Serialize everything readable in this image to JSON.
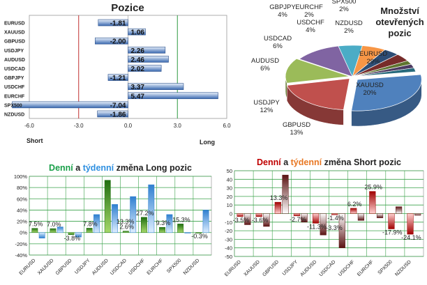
{
  "chart_data": [
    {
      "type": "bar",
      "orientation": "horizontal",
      "title": "Pozice",
      "categories": [
        "EURUSD",
        "XAUUSD",
        "GBPUSD",
        "USDJPY",
        "AUDUSD",
        "USDCAD",
        "GBPJPY",
        "USDCHF",
        "EURCHF",
        "SPX500",
        "NZDUSD"
      ],
      "values": [
        -1.81,
        1.06,
        -2.0,
        2.26,
        2.46,
        2.02,
        -1.21,
        3.37,
        5.47,
        -7.04,
        -1.86
      ],
      "value_labels": [
        "-1.81",
        "1.06",
        "-2.00",
        "2.26",
        "2.46",
        "2.02",
        "-1.21",
        "3.37",
        "5.47",
        "-7.04",
        "-1.86"
      ],
      "xlim": [
        -6.0,
        6.0
      ],
      "xticks": [
        "-6.0",
        "-3.0",
        "0.0",
        "3.0",
        "6.0"
      ],
      "xlabel_left": "Short",
      "xlabel_right": "Long"
    },
    {
      "type": "pie",
      "title": "Množství otevřených pozic",
      "title_lines": [
        "Množství",
        "otevřených",
        "pozic"
      ],
      "slices": [
        {
          "label": "EURUSD",
          "value": 29,
          "text": "29%",
          "color": "#4f81bd"
        },
        {
          "label": "XAUUSD",
          "value": 20,
          "text": "20%",
          "color": "#c0504d"
        },
        {
          "label": "GBPUSD",
          "value": 13,
          "text": "13%",
          "color": "#9bbb59"
        },
        {
          "label": "USDJPY",
          "value": 12,
          "text": "12%",
          "color": "#8064a2"
        },
        {
          "label": "AUDUSD",
          "value": 6,
          "text": "6%",
          "color": "#4bacc6"
        },
        {
          "label": "USDCAD",
          "value": 6,
          "text": "6%",
          "color": "#f79646"
        },
        {
          "label": "GBPJPY",
          "value": 4,
          "text": "4%",
          "color": "#2c4d75"
        },
        {
          "label": "USDCHF",
          "value": 4,
          "text": "4%",
          "color": "#772c2a"
        },
        {
          "label": "EURCHF",
          "value": 2,
          "text": "2%",
          "color": "#5f7530"
        },
        {
          "label": "SPX500",
          "value": 2,
          "text": "2%",
          "color": "#4d3b62"
        },
        {
          "label": "NZDUSD",
          "value": 2,
          "text": "2%",
          "color": "#276a7c"
        }
      ]
    },
    {
      "type": "bar",
      "title_parts": [
        "Denní",
        " a ",
        "týdenní",
        " změna Long pozic"
      ],
      "title_colors": [
        "#1aa04a",
        "#222222",
        "#2e8fe0",
        "#222222"
      ],
      "categories": [
        "EURUSD",
        "XAUUSD",
        "GBPUSD",
        "USDJPY",
        "AUDUSD",
        "USDCAD",
        "USDCHF",
        "EURCHF",
        "SPX500",
        "NZDUSD"
      ],
      "series": [
        {
          "values": [
            7.5,
            7.0,
            -3.8,
            7.8,
            93,
            2.6,
            27.2,
            9.3,
            15.3,
            -0.3
          ],
          "colors": [
            "#1f6e10",
            "#a6d86a"
          ]
        },
        {
          "values": [
            -10,
            10,
            -8,
            32,
            50,
            64,
            85,
            32,
            0,
            40
          ],
          "colors": [
            "#2f7fd0",
            "#ddeeff"
          ]
        }
      ],
      "data_labels": [
        "7.5%",
        "7.0%",
        "-3.8%",
        "7.8%",
        "",
        "2.6%",
        "27.2%",
        "9.3%",
        "15.3%",
        "-0.3%"
      ],
      "data_labels_extra": {
        "13.3%": 5
      },
      "ylim": [
        -40,
        100
      ],
      "yticks": [
        "-40%",
        "-20%",
        "0%",
        "20%",
        "40%",
        "60%",
        "80%",
        "100%"
      ]
    },
    {
      "type": "bar",
      "title_parts": [
        "Denní",
        " a ",
        "týdenní",
        " změna Short pozic"
      ],
      "title_colors": [
        "#c00000",
        "#222222",
        "#e87722",
        "#222222"
      ],
      "categories": [
        "EURUSD",
        "XAUUSD",
        "GBPUSD",
        "USDJPY",
        "AUDUSD",
        "USDCAD",
        "USDCHF",
        "EURCHF",
        "SPX500",
        "NZDUSD"
      ],
      "series": [
        {
          "values": [
            -3.5,
            -3.6,
            13.3,
            -2.7,
            -11.3,
            -1.4,
            6.2,
            25.9,
            -17.9,
            -24.1
          ],
          "colors": [
            "#a00000",
            "#ffd0d0"
          ]
        },
        {
          "values": [
            -13,
            -15,
            45,
            -10,
            -25,
            -40,
            -8,
            -5,
            8,
            -2
          ],
          "colors": [
            "#5a1212",
            "#ffffff"
          ]
        }
      ],
      "data_labels": [
        "-3.5%",
        "-3.6%",
        "13.3%",
        "-2.7%",
        "-11.3%",
        "-1.4%",
        "6.2%",
        "25.9%",
        "-17.9%",
        "-24.1%"
      ],
      "data_labels_extra": {
        "-3.3%": 5
      },
      "ylim": [
        -50,
        50
      ],
      "yticks": [
        "-50",
        "-40",
        "-30",
        "-20",
        "-10",
        "0",
        "10",
        "20",
        "30",
        "40",
        "50"
      ]
    }
  ]
}
